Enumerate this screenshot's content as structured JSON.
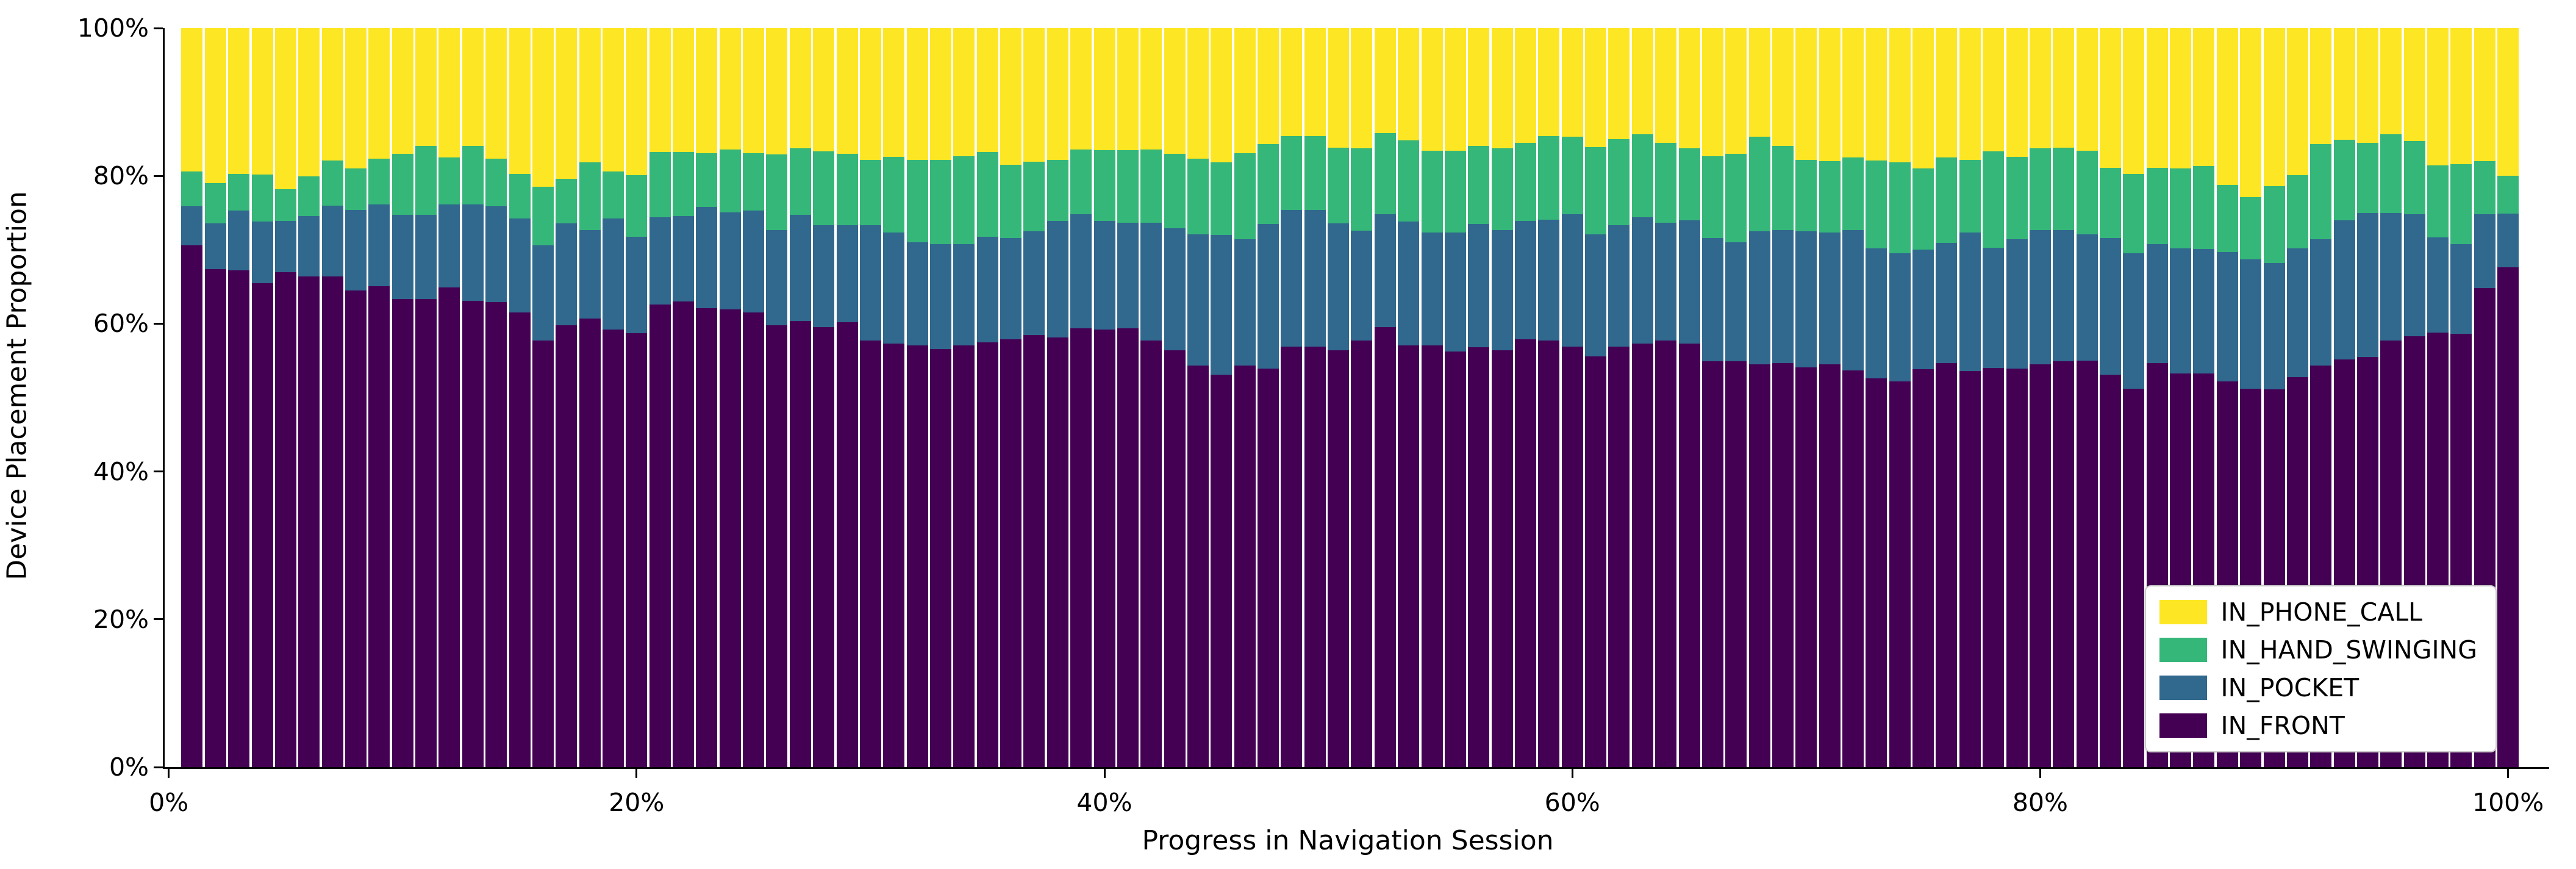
{
  "chart_data": {
    "type": "bar",
    "stacked": true,
    "normalized_percent": true,
    "title": "",
    "xlabel": "Progress in Navigation Session",
    "ylabel": "Device Placement Proportion",
    "x_axis": {
      "ticks": [
        "0%",
        "20%",
        "40%",
        "60%",
        "80%",
        "100%"
      ],
      "tick_values": [
        0,
        20,
        40,
        60,
        80,
        100
      ],
      "range": [
        0,
        101
      ]
    },
    "y_axis": {
      "ticks": [
        "0%",
        "20%",
        "40%",
        "60%",
        "80%",
        "100%"
      ],
      "tick_values": [
        0,
        20,
        40,
        60,
        80,
        100
      ],
      "range": [
        0,
        100
      ]
    },
    "grid": false,
    "legend": {
      "position": "lower right",
      "entries": [
        "IN_PHONE_CALL",
        "IN_HAND_SWINGING",
        "IN_POCKET",
        "IN_FRONT"
      ]
    },
    "x": [
      1,
      2,
      3,
      4,
      5,
      6,
      7,
      8,
      9,
      10,
      11,
      12,
      13,
      14,
      15,
      16,
      17,
      18,
      19,
      20,
      21,
      22,
      23,
      24,
      25,
      26,
      27,
      28,
      29,
      30,
      31,
      32,
      33,
      34,
      35,
      36,
      37,
      38,
      39,
      40,
      41,
      42,
      43,
      44,
      45,
      46,
      47,
      48,
      49,
      50,
      51,
      52,
      53,
      54,
      55,
      56,
      57,
      58,
      59,
      60,
      61,
      62,
      63,
      64,
      65,
      66,
      67,
      68,
      69,
      70,
      71,
      72,
      73,
      74,
      75,
      76,
      77,
      78,
      79,
      80,
      81,
      82,
      83,
      84,
      85,
      86,
      87,
      88,
      89,
      90,
      91,
      92,
      93,
      94,
      95,
      96,
      97,
      98,
      99,
      100
    ],
    "series": [
      {
        "name": "IN_FRONT",
        "color": "#440154",
        "values": [
          70.6,
          67.4,
          67.2,
          65.5,
          67.0,
          66.4,
          66.4,
          64.5,
          65.1,
          63.3,
          63.3,
          64.9,
          63.1,
          62.9,
          61.5,
          57.7,
          59.8,
          60.7,
          59.2,
          58.7,
          62.6,
          63.0,
          62.1,
          61.9,
          61.5,
          59.8,
          60.4,
          59.5,
          60.2,
          57.7,
          57.3,
          57.1,
          56.6,
          57.1,
          57.5,
          57.9,
          58.5,
          58.1,
          59.4,
          59.2,
          59.4,
          57.7,
          56.4,
          54.3,
          53.1,
          54.3,
          53.9,
          56.9,
          56.9,
          56.4,
          57.7,
          59.5,
          57.1,
          57.1,
          56.2,
          56.8,
          56.4,
          57.9,
          57.7,
          56.9,
          55.6,
          56.9,
          57.3,
          57.7,
          57.3,
          54.9,
          54.9,
          54.5,
          54.7,
          54.1,
          54.5,
          53.7,
          52.6,
          52.2,
          53.8,
          54.7,
          53.6,
          54.0,
          53.9,
          54.5,
          54.9,
          55.0,
          53.1,
          51.2,
          54.7,
          53.3,
          53.3,
          52.2,
          51.2,
          51.1,
          52.8,
          54.3,
          55.2,
          55.5,
          57.7,
          58.3,
          58.8,
          58.6,
          64.8,
          67.6
        ]
      },
      {
        "name": "IN_POCKET",
        "color": "#31688e",
        "values": [
          5.3,
          6.2,
          8.1,
          8.3,
          6.9,
          8.2,
          9.6,
          10.9,
          11.0,
          11.4,
          11.4,
          11.2,
          13.0,
          13.0,
          12.7,
          12.9,
          13.8,
          12.0,
          15.0,
          13.1,
          11.8,
          11.6,
          13.7,
          13.2,
          13.8,
          12.9,
          14.3,
          13.8,
          13.1,
          15.6,
          15.0,
          13.9,
          14.2,
          13.7,
          14.3,
          13.7,
          14.0,
          15.8,
          15.4,
          14.7,
          14.3,
          16.0,
          16.5,
          17.8,
          18.9,
          17.1,
          19.6,
          18.5,
          18.5,
          17.2,
          14.9,
          15.3,
          16.7,
          15.2,
          16.1,
          16.7,
          16.3,
          16.0,
          16.4,
          17.9,
          16.5,
          16.4,
          17.1,
          16.0,
          16.7,
          16.7,
          16.1,
          18.0,
          18.0,
          18.4,
          17.8,
          19.0,
          17.6,
          17.3,
          16.2,
          16.2,
          18.7,
          16.3,
          17.5,
          18.2,
          17.8,
          17.1,
          18.5,
          18.3,
          16.1,
          16.9,
          16.8,
          17.5,
          17.5,
          17.1,
          17.4,
          17.1,
          18.8,
          19.5,
          17.3,
          16.5,
          12.9,
          12.2,
          10.0,
          7.3
        ]
      },
      {
        "name": "IN_HAND_SWINGING",
        "color": "#35b779",
        "values": [
          4.7,
          5.4,
          5.0,
          6.4,
          4.3,
          5.3,
          6.1,
          5.6,
          6.2,
          8.3,
          9.4,
          6.4,
          8.0,
          6.4,
          6.1,
          7.9,
          6.0,
          9.1,
          6.4,
          8.3,
          8.8,
          8.6,
          7.3,
          8.5,
          7.8,
          10.2,
          9.0,
          10.0,
          9.7,
          8.9,
          10.3,
          11.2,
          11.4,
          11.9,
          11.4,
          9.9,
          9.4,
          8.3,
          8.8,
          9.6,
          9.8,
          9.9,
          10.1,
          10.2,
          9.8,
          11.7,
          10.8,
          10.0,
          10.0,
          10.2,
          11.1,
          11.0,
          11.0,
          11.1,
          11.1,
          10.6,
          11.0,
          10.6,
          11.3,
          10.5,
          11.8,
          11.7,
          11.2,
          10.8,
          9.7,
          11.1,
          12.0,
          12.8,
          11.4,
          9.7,
          9.7,
          9.8,
          11.9,
          12.3,
          11.0,
          11.6,
          9.9,
          13.0,
          11.2,
          11.0,
          11.1,
          11.3,
          9.5,
          10.8,
          10.3,
          10.8,
          11.2,
          9.1,
          8.4,
          10.4,
          9.9,
          12.9,
          10.9,
          9.5,
          10.6,
          9.9,
          9.7,
          10.8,
          7.2,
          5.1
        ]
      },
      {
        "name": "IN_PHONE_CALL",
        "color": "#fde725",
        "values": [
          19.4,
          21.0,
          19.7,
          19.8,
          21.8,
          20.1,
          17.9,
          19.0,
          17.7,
          17.0,
          15.9,
          17.5,
          15.9,
          17.7,
          19.7,
          21.5,
          20.4,
          18.2,
          19.4,
          19.9,
          16.8,
          16.8,
          16.9,
          16.4,
          16.9,
          17.1,
          16.3,
          16.7,
          17.0,
          17.8,
          17.4,
          17.8,
          17.8,
          17.3,
          16.8,
          18.5,
          18.1,
          17.8,
          16.4,
          16.5,
          16.5,
          16.4,
          17.0,
          17.7,
          18.2,
          16.9,
          15.7,
          14.6,
          14.6,
          16.2,
          16.3,
          14.2,
          15.2,
          16.6,
          16.6,
          15.9,
          16.3,
          15.5,
          14.6,
          14.7,
          16.1,
          15.0,
          14.4,
          15.5,
          16.3,
          17.3,
          17.0,
          14.7,
          15.9,
          17.8,
          18.0,
          17.5,
          17.9,
          18.2,
          19.0,
          17.5,
          17.8,
          16.7,
          17.4,
          16.3,
          16.2,
          16.6,
          18.9,
          19.7,
          18.9,
          19.0,
          18.7,
          21.2,
          22.9,
          21.4,
          19.9,
          15.7,
          15.1,
          15.5,
          14.4,
          15.3,
          18.6,
          18.4,
          18.0,
          20.0
        ]
      }
    ]
  }
}
